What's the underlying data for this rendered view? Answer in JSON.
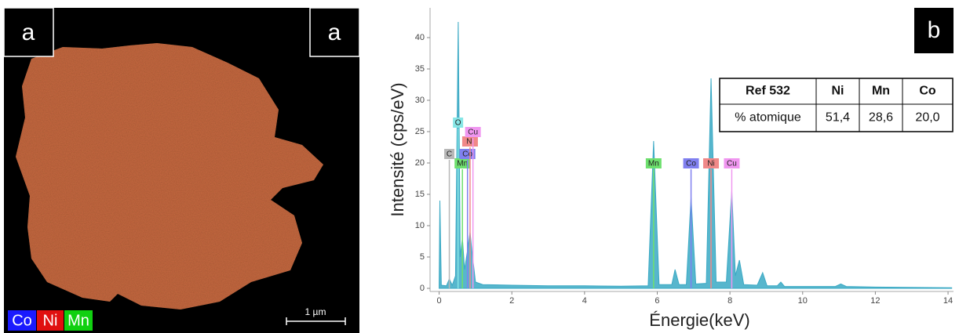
{
  "map_panel": {
    "label_left": "a",
    "label_right": "a",
    "scale_bar": "1 µm",
    "legend": [
      {
        "name": "Co",
        "color": "#1a1aff"
      },
      {
        "name": "Ni",
        "color": "#e01010"
      },
      {
        "name": "Mn",
        "color": "#10d010"
      }
    ]
  },
  "chart_data": {
    "type": "area",
    "panel_label": "b",
    "x_label": "Énergie(keV)",
    "y_label": "Intensité (cps/eV)",
    "xlim": [
      -0.25,
      14.15
    ],
    "ylim": [
      -0.5,
      44.75
    ],
    "xticks": [
      0,
      2,
      4,
      6,
      8,
      10,
      12,
      14
    ],
    "yticks": [
      0,
      5,
      10,
      15,
      20,
      25,
      30,
      35,
      40
    ],
    "x": [
      0.0,
      0.02,
      0.06,
      0.2,
      0.28,
      0.36,
      0.45,
      0.525,
      0.58,
      0.64,
      0.7,
      0.78,
      0.85,
      0.9,
      0.94,
      1.0,
      1.2,
      2,
      3,
      4,
      5,
      5.75,
      5.9,
      6.05,
      6.4,
      6.49,
      6.6,
      6.8,
      6.93,
      7.06,
      7.35,
      7.48,
      7.62,
      7.9,
      8.05,
      8.15,
      8.26,
      8.38,
      8.75,
      8.9,
      9.02,
      9.3,
      9.4,
      9.5,
      10.9,
      11.05,
      11.2,
      12,
      14.1
    ],
    "series": [
      {
        "color": "#3aa9c4",
        "values": [
          0.5,
          14,
          0.5,
          0.4,
          1.5,
          0.5,
          2,
          42.5,
          5,
          8,
          3,
          6,
          9,
          6,
          4,
          1,
          0.6,
          0.5,
          0.4,
          0.4,
          0.35,
          0.4,
          23.5,
          0.6,
          0.6,
          3,
          0.6,
          0.6,
          14.5,
          0.7,
          0.8,
          33.5,
          1,
          1,
          15.5,
          2,
          4.5,
          0.6,
          0.5,
          2.5,
          0.4,
          0.4,
          1,
          0.3,
          0.3,
          0.7,
          0.3,
          0.2,
          0.1
        ]
      }
    ],
    "markers": [
      {
        "label": "C",
        "x": 0.28,
        "y": 20.5,
        "color": "#b8b8b8"
      },
      {
        "label": "O",
        "x": 0.52,
        "y": 25.5,
        "color": "#86e6e6"
      },
      {
        "label": "Mn",
        "x": 0.64,
        "y": 19,
        "color": "#6ee06e"
      },
      {
        "label": "Co",
        "x": 0.78,
        "y": 20.5,
        "color": "#8080f0"
      },
      {
        "label": "Ni",
        "x": 0.85,
        "y": 22.5,
        "color": "#f08888"
      },
      {
        "label": "Cu",
        "x": 0.93,
        "y": 24,
        "color": "#f096f0"
      },
      {
        "label": "Mn",
        "x": 5.9,
        "y": 19,
        "color": "#6ee06e"
      },
      {
        "label": "Co",
        "x": 6.93,
        "y": 19,
        "color": "#8080f0"
      },
      {
        "label": "Ni",
        "x": 7.48,
        "y": 19,
        "color": "#f08888"
      },
      {
        "label": "Cu",
        "x": 8.05,
        "y": 19,
        "color": "#f096f0"
      }
    ],
    "table": {
      "header": [
        "Ref 532",
        "Ni",
        "Mn",
        "Co"
      ],
      "rows": [
        [
          "% atomique",
          "51,4",
          "28,6",
          "20,0"
        ]
      ]
    }
  }
}
